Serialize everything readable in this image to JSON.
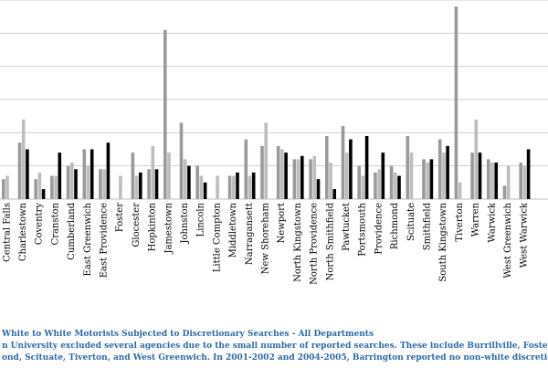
{
  "caption": {
    "line1": "White to White Motorists Subjected to Discretionary Searches - All Departments",
    "line2": "n University excluded several agencies due to the small number of reported searches. These include Burrillville, Foster, Jam",
    "line3": "ond, Scituate, Tiverton, and West Greenwich. In 2001-2002 and 2004-2005, Barrington reported no non-white discretionar"
  },
  "chart_data": {
    "type": "bar",
    "title": "",
    "xlabel": "",
    "ylabel": "",
    "ylim": [
      0,
      30
    ],
    "grid": true,
    "colors": [
      "#9a9a9a",
      "#bdbdbd",
      "#000000"
    ],
    "categories": [
      "Central Falls",
      "Charlestown",
      "Coventry",
      "Cranston",
      "Cumberland",
      "East Greenwich",
      "East Providence",
      "Foster",
      "Glocester",
      "Hopkinton",
      "Jamestown",
      "Johnston",
      "Lincoln",
      "Little Compton",
      "Middletown",
      "Narragansett",
      "New Shoreham",
      "Newport",
      "North Kingstown",
      "North Providence",
      "North Smithfield",
      "Pawtucket",
      "Portsmouth",
      "Providence",
      "Richmond",
      "Scituate",
      "Smithfield",
      "South Kingstown",
      "Tiverton",
      "Warren",
      "Warwick",
      "West Greenwich",
      "West Warwick"
    ],
    "series": [
      {
        "values": [
          3.0,
          8.5,
          3.0,
          3.5,
          5.0,
          7.5,
          4.5,
          0,
          7.0,
          4.5,
          25.5,
          11.5,
          5.0,
          0,
          3.5,
          9.0,
          8.0,
          8.0,
          6.0,
          6.0,
          9.5,
          11.0,
          5.0,
          4.0,
          5.0,
          9.5,
          6.0,
          9.0,
          29.0,
          7.0,
          6.0,
          2.0,
          5.5
        ]
      },
      {
        "values": [
          3.5,
          12.0,
          4.0,
          3.5,
          5.5,
          5.0,
          4.5,
          3.5,
          3.5,
          8.0,
          7.0,
          6.0,
          3.5,
          3.5,
          3.5,
          3.5,
          11.5,
          7.5,
          6.0,
          6.5,
          5.5,
          7.0,
          3.5,
          4.5,
          4.0,
          7.0,
          5.5,
          7.0,
          2.5,
          12.0,
          5.5,
          5.0,
          5.0
        ]
      },
      {
        "values": [
          0,
          7.5,
          1.5,
          7.0,
          4.5,
          7.5,
          8.5,
          0,
          4.0,
          4.5,
          0,
          5.0,
          2.5,
          0,
          4.0,
          4.0,
          0,
          7.0,
          6.5,
          3.0,
          1.5,
          9.0,
          9.5,
          7.0,
          3.5,
          0,
          6.0,
          8.0,
          0,
          7.0,
          5.5,
          0,
          7.5
        ]
      }
    ]
  }
}
